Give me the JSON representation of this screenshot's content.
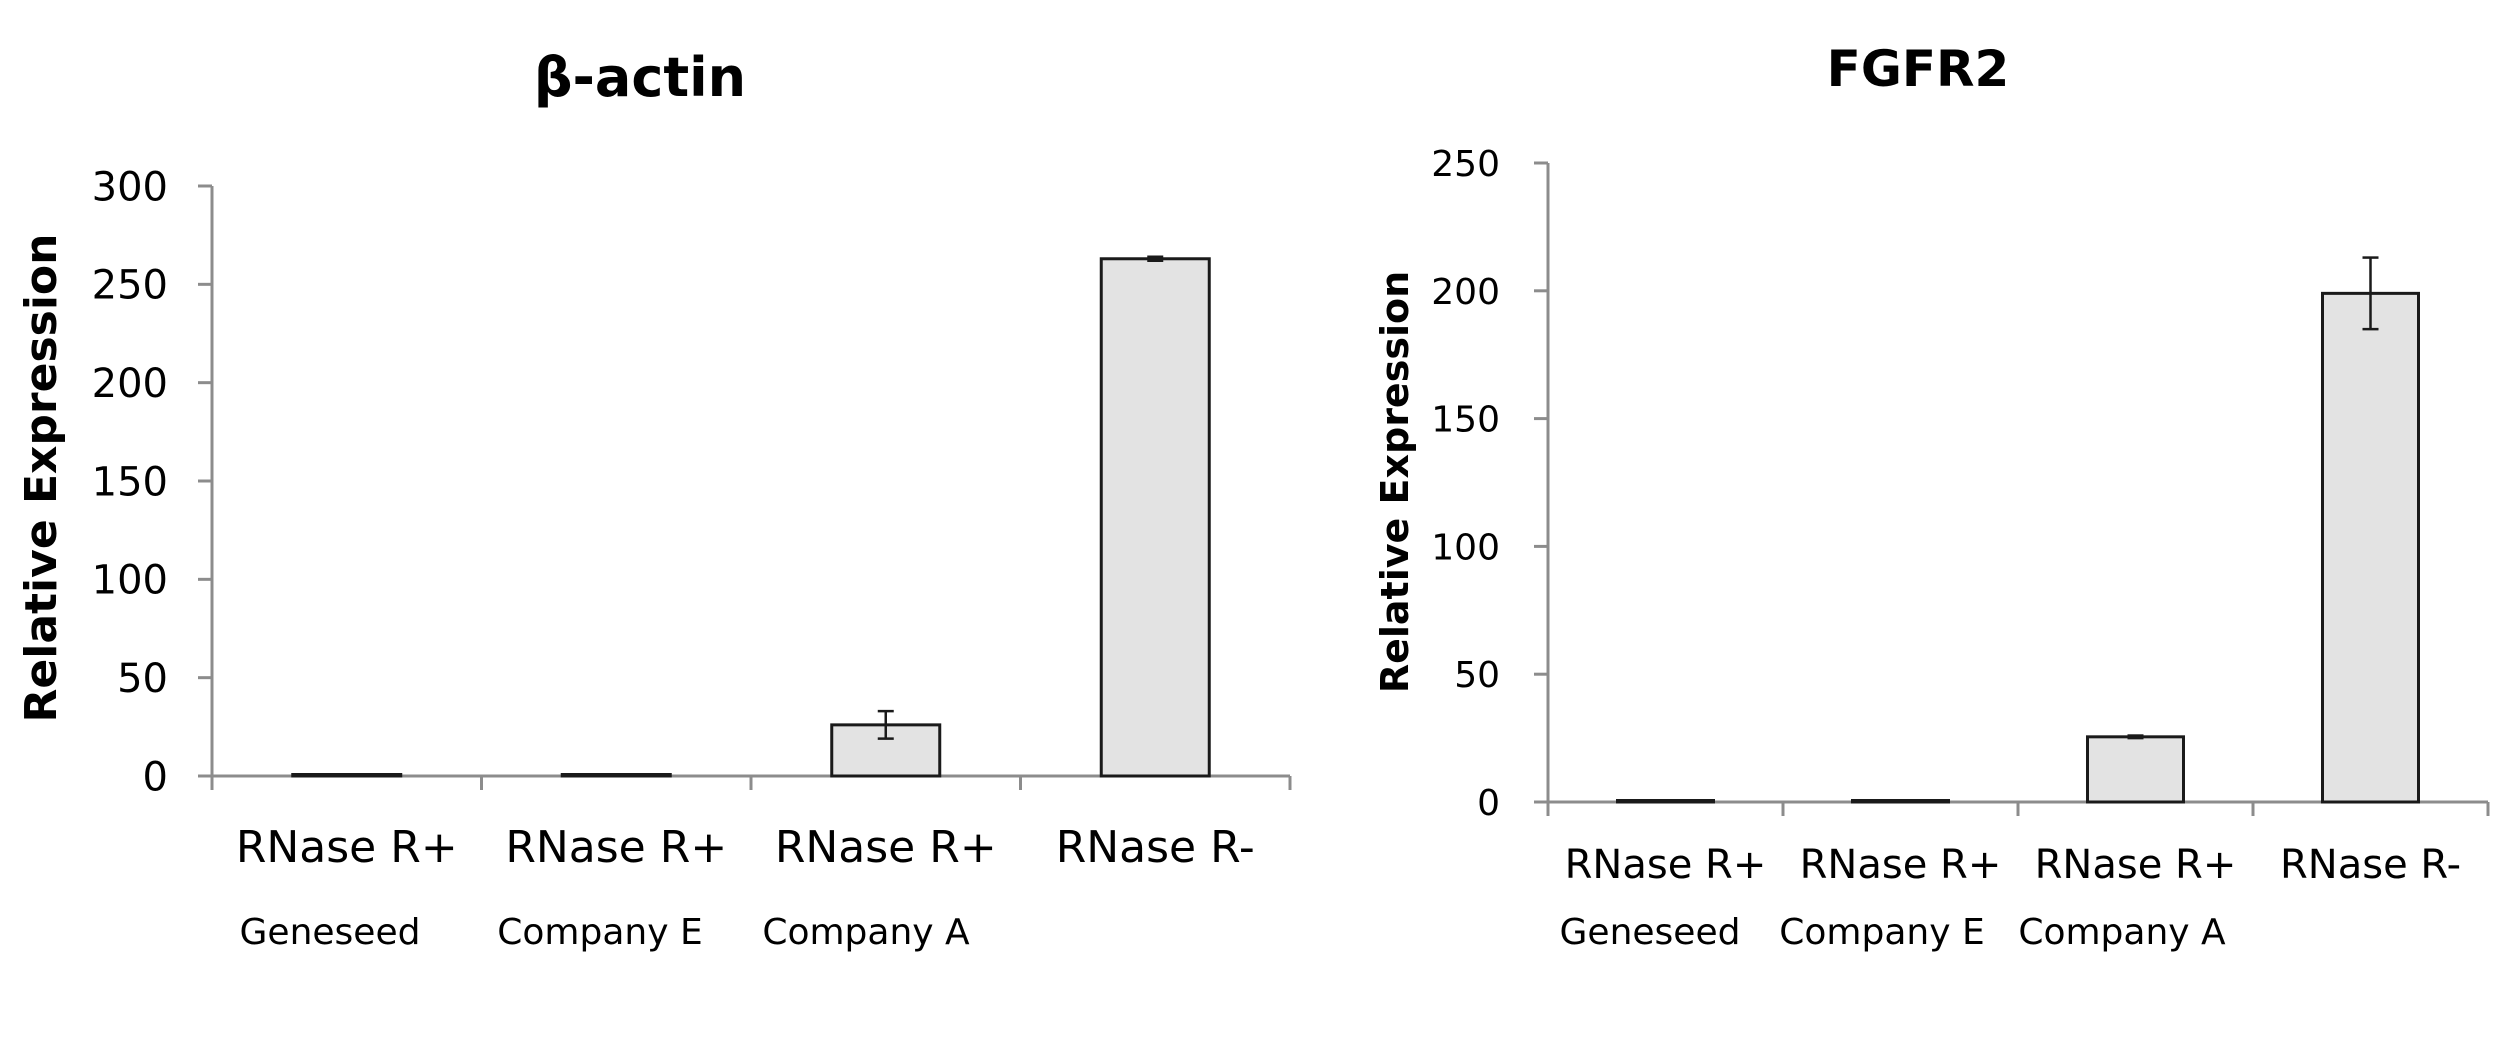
{
  "chart_data": [
    {
      "type": "bar",
      "title": "β-actin",
      "xlabel": "",
      "ylabel": "Relative Expression",
      "ylim": [
        0,
        300
      ],
      "yticks": [
        0,
        50,
        100,
        150,
        200,
        250,
        300
      ],
      "grid": false,
      "categories": [
        "RNase R+",
        "RNase R+",
        "RNase R+",
        "RNase R-"
      ],
      "category_sublabels": [
        "Geneseed",
        "Company E",
        "Company A",
        ""
      ],
      "values": [
        0.5,
        0.5,
        26,
        263
      ],
      "errors": [
        0,
        0,
        7,
        1
      ]
    },
    {
      "type": "bar",
      "title": "FGFR2",
      "xlabel": "",
      "ylabel": "Relative Expression",
      "ylim": [
        0,
        250
      ],
      "yticks": [
        0,
        50,
        100,
        150,
        200,
        250
      ],
      "grid": false,
      "categories": [
        "RNase R+",
        "RNase R+",
        "RNase R+",
        "RNase R-"
      ],
      "category_sublabels": [
        "Geneseed",
        "Company E",
        "Company A",
        ""
      ],
      "values": [
        0.5,
        0.5,
        25.5,
        199
      ],
      "errors": [
        0,
        0,
        0.5,
        14
      ]
    }
  ]
}
